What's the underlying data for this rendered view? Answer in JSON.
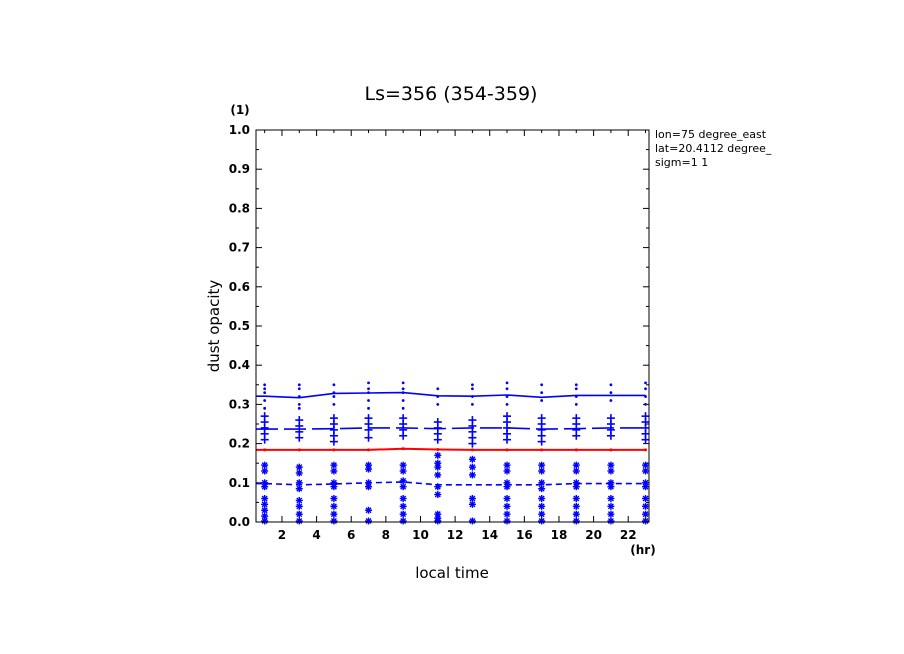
{
  "chart_data": {
    "type": "line",
    "title": "Ls=356 (354-359)",
    "xlabel": "local time",
    "ylabel": "dust opacity",
    "x_unit": "(hr)",
    "y_unit": "(1)",
    "xlim": [
      0.5,
      23.2
    ],
    "ylim": [
      0.0,
      1.0
    ],
    "x_ticks": [
      2,
      4,
      6,
      8,
      10,
      12,
      14,
      16,
      18,
      20,
      22
    ],
    "y_ticks": [
      0.0,
      0.1,
      0.2,
      0.3,
      0.4,
      0.5,
      0.6,
      0.7,
      0.8,
      0.9,
      1.0
    ],
    "y_tick_labels": [
      "0.0",
      "0.1",
      "0.2",
      "0.3",
      "0.4",
      "0.5",
      "0.6",
      "0.7",
      "0.8",
      "0.9",
      "1.0"
    ],
    "grid": false,
    "info": [
      "lon=75 degree_east",
      "lat=20.4112 degree_",
      "sigm=1 1"
    ],
    "x": [
      1,
      3,
      5,
      7,
      9,
      11,
      13,
      15,
      17,
      19,
      21,
      23
    ],
    "series": [
      {
        "style": "solid",
        "color": "#0000ff",
        "values": [
          0.321,
          0.317,
          0.328,
          0.329,
          0.33,
          0.322,
          0.321,
          0.324,
          0.318,
          0.323,
          0.323,
          0.323
        ]
      },
      {
        "style": "long-dash",
        "color": "#0000ff",
        "values": [
          0.237,
          0.237,
          0.238,
          0.24,
          0.24,
          0.238,
          0.24,
          0.24,
          0.237,
          0.238,
          0.24,
          0.24
        ]
      },
      {
        "style": "solid",
        "color": "#ff0000",
        "values": [
          0.184,
          0.184,
          0.184,
          0.184,
          0.187,
          0.185,
          0.184,
          0.184,
          0.184,
          0.184,
          0.184,
          0.184
        ]
      },
      {
        "style": "dash",
        "color": "#0000ff",
        "values": [
          0.098,
          0.095,
          0.097,
          0.1,
          0.102,
          0.095,
          0.095,
          0.095,
          0.095,
          0.098,
          0.098,
          0.098
        ]
      }
    ],
    "scatter": [
      {
        "marker": "dot",
        "color": "#0000ff",
        "points": [
          [
            1,
            0.35
          ],
          [
            1,
            0.34
          ],
          [
            1,
            0.33
          ],
          [
            1,
            0.31
          ],
          [
            1,
            0.29
          ],
          [
            3,
            0.35
          ],
          [
            3,
            0.34
          ],
          [
            3,
            0.32
          ],
          [
            3,
            0.3
          ],
          [
            3,
            0.29
          ],
          [
            5,
            0.35
          ],
          [
            5,
            0.33
          ],
          [
            5,
            0.32
          ],
          [
            5,
            0.3
          ],
          [
            7,
            0.355
          ],
          [
            7,
            0.34
          ],
          [
            7,
            0.33
          ],
          [
            7,
            0.31
          ],
          [
            7,
            0.29
          ],
          [
            9,
            0.355
          ],
          [
            9,
            0.34
          ],
          [
            9,
            0.33
          ],
          [
            9,
            0.31
          ],
          [
            9,
            0.29
          ],
          [
            11,
            0.34
          ],
          [
            11,
            0.32
          ],
          [
            11,
            0.3
          ],
          [
            13,
            0.35
          ],
          [
            13,
            0.34
          ],
          [
            13,
            0.32
          ],
          [
            13,
            0.3
          ],
          [
            15,
            0.355
          ],
          [
            15,
            0.34
          ],
          [
            15,
            0.32
          ],
          [
            15,
            0.3
          ],
          [
            17,
            0.35
          ],
          [
            17,
            0.33
          ],
          [
            17,
            0.31
          ],
          [
            19,
            0.35
          ],
          [
            19,
            0.34
          ],
          [
            19,
            0.32
          ],
          [
            19,
            0.3
          ],
          [
            21,
            0.35
          ],
          [
            21,
            0.33
          ],
          [
            21,
            0.31
          ],
          [
            23,
            0.355
          ],
          [
            23,
            0.34
          ],
          [
            23,
            0.32
          ],
          [
            23,
            0.3
          ]
        ]
      },
      {
        "marker": "plus",
        "color": "#0000ff",
        "points": [
          [
            1,
            0.27
          ],
          [
            1,
            0.255
          ],
          [
            1,
            0.24
          ],
          [
            1,
            0.225
          ],
          [
            1,
            0.21
          ],
          [
            3,
            0.26
          ],
          [
            3,
            0.245
          ],
          [
            3,
            0.23
          ],
          [
            3,
            0.215
          ],
          [
            5,
            0.265
          ],
          [
            5,
            0.25
          ],
          [
            5,
            0.235
          ],
          [
            5,
            0.22
          ],
          [
            5,
            0.205
          ],
          [
            7,
            0.265
          ],
          [
            7,
            0.25
          ],
          [
            7,
            0.235
          ],
          [
            7,
            0.215
          ],
          [
            9,
            0.265
          ],
          [
            9,
            0.25
          ],
          [
            9,
            0.235
          ],
          [
            9,
            0.22
          ],
          [
            11,
            0.255
          ],
          [
            11,
            0.24
          ],
          [
            11,
            0.225
          ],
          [
            11,
            0.21
          ],
          [
            13,
            0.26
          ],
          [
            13,
            0.245
          ],
          [
            13,
            0.23
          ],
          [
            13,
            0.215
          ],
          [
            13,
            0.2
          ],
          [
            15,
            0.27
          ],
          [
            15,
            0.255
          ],
          [
            15,
            0.24
          ],
          [
            15,
            0.225
          ],
          [
            15,
            0.21
          ],
          [
            17,
            0.265
          ],
          [
            17,
            0.25
          ],
          [
            17,
            0.235
          ],
          [
            17,
            0.22
          ],
          [
            17,
            0.205
          ],
          [
            19,
            0.265
          ],
          [
            19,
            0.25
          ],
          [
            19,
            0.235
          ],
          [
            19,
            0.22
          ],
          [
            21,
            0.265
          ],
          [
            21,
            0.25
          ],
          [
            21,
            0.235
          ],
          [
            21,
            0.22
          ],
          [
            23,
            0.27
          ],
          [
            23,
            0.255
          ],
          [
            23,
            0.24
          ],
          [
            23,
            0.225
          ],
          [
            23,
            0.21
          ]
        ]
      },
      {
        "marker": "star",
        "color": "#0000ff",
        "points": [
          [
            1,
            0.145
          ],
          [
            1,
            0.13
          ],
          [
            1,
            0.1
          ],
          [
            1,
            0.09
          ],
          [
            1,
            0.06
          ],
          [
            1,
            0.045
          ],
          [
            1,
            0.03
          ],
          [
            1,
            0.015
          ],
          [
            1,
            0.0
          ],
          [
            3,
            0.14
          ],
          [
            3,
            0.125
          ],
          [
            3,
            0.1
          ],
          [
            3,
            0.085
          ],
          [
            3,
            0.055
          ],
          [
            3,
            0.04
          ],
          [
            3,
            0.02
          ],
          [
            3,
            0.0
          ],
          [
            5,
            0.145
          ],
          [
            5,
            0.13
          ],
          [
            5,
            0.1
          ],
          [
            5,
            0.09
          ],
          [
            5,
            0.06
          ],
          [
            5,
            0.04
          ],
          [
            5,
            0.02
          ],
          [
            5,
            0.0
          ],
          [
            7,
            0.145
          ],
          [
            7,
            0.135
          ],
          [
            7,
            0.1
          ],
          [
            7,
            0.09
          ],
          [
            7,
            0.03
          ],
          [
            7,
            0.0
          ],
          [
            9,
            0.145
          ],
          [
            9,
            0.13
          ],
          [
            9,
            0.105
          ],
          [
            9,
            0.09
          ],
          [
            9,
            0.06
          ],
          [
            9,
            0.04
          ],
          [
            9,
            0.02
          ],
          [
            9,
            0.0
          ],
          [
            11,
            0.17
          ],
          [
            11,
            0.15
          ],
          [
            11,
            0.14
          ],
          [
            11,
            0.12
          ],
          [
            11,
            0.09
          ],
          [
            11,
            0.07
          ],
          [
            11,
            0.02
          ],
          [
            11,
            0.01
          ],
          [
            11,
            0.0
          ],
          [
            13,
            0.16
          ],
          [
            13,
            0.14
          ],
          [
            13,
            0.12
          ],
          [
            13,
            0.06
          ],
          [
            13,
            0.045
          ],
          [
            13,
            0.0
          ],
          [
            15,
            0.145
          ],
          [
            15,
            0.13
          ],
          [
            15,
            0.1
          ],
          [
            15,
            0.09
          ],
          [
            15,
            0.06
          ],
          [
            15,
            0.04
          ],
          [
            15,
            0.02
          ],
          [
            15,
            0.0
          ],
          [
            17,
            0.145
          ],
          [
            17,
            0.13
          ],
          [
            17,
            0.1
          ],
          [
            17,
            0.085
          ],
          [
            17,
            0.06
          ],
          [
            17,
            0.04
          ],
          [
            17,
            0.02
          ],
          [
            17,
            0.0
          ],
          [
            19,
            0.145
          ],
          [
            19,
            0.13
          ],
          [
            19,
            0.1
          ],
          [
            19,
            0.09
          ],
          [
            19,
            0.06
          ],
          [
            19,
            0.04
          ],
          [
            19,
            0.02
          ],
          [
            19,
            0.0
          ],
          [
            21,
            0.145
          ],
          [
            21,
            0.13
          ],
          [
            21,
            0.1
          ],
          [
            21,
            0.09
          ],
          [
            21,
            0.06
          ],
          [
            21,
            0.04
          ],
          [
            21,
            0.02
          ],
          [
            21,
            0.0
          ],
          [
            23,
            0.145
          ],
          [
            23,
            0.13
          ],
          [
            23,
            0.1
          ],
          [
            23,
            0.09
          ],
          [
            23,
            0.06
          ],
          [
            23,
            0.04
          ],
          [
            23,
            0.02
          ],
          [
            23,
            0.0
          ]
        ]
      }
    ]
  }
}
